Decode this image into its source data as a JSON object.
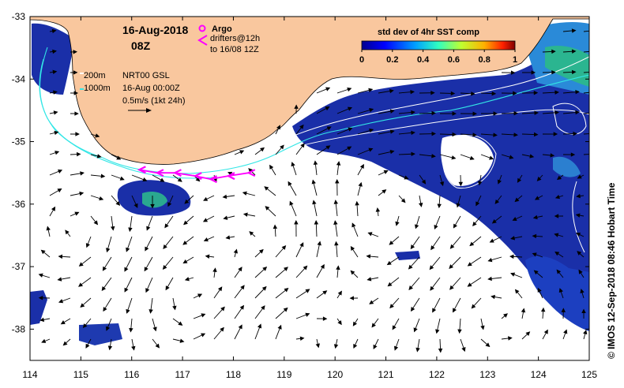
{
  "header": {
    "date": "16-Aug-2018",
    "time": "08Z"
  },
  "legend": {
    "argo_label": "Argo",
    "drifters_line1": "drifters@12h",
    "drifters_line2": "to 16/08 12Z",
    "depth_200": "200m",
    "depth_1000": "1000m",
    "product": "NRT00 GSL",
    "product_time": "16-Aug 00:00Z",
    "vector_scale": "0.5m/s (1kt 24h)"
  },
  "colorbar": {
    "title": "std dev of 4hr SST comp",
    "ticks": [
      "0",
      "0.2",
      "0.4",
      "0.6",
      "0.8",
      "1"
    ],
    "range": [
      0,
      1
    ]
  },
  "axes": {
    "x_ticks": [
      "114",
      "115",
      "116",
      "117",
      "118",
      "119",
      "120",
      "121",
      "122",
      "123",
      "124",
      "125"
    ],
    "y_ticks": [
      "-33",
      "-34",
      "-35",
      "-36",
      "-37",
      "-38"
    ],
    "lon_range": [
      114,
      125
    ],
    "lat_range": [
      -38.5,
      -33
    ]
  },
  "credit": "© IMOS 12-Sep-2018 08:46 Hobart Time",
  "colors": {
    "land": "#f9c79e",
    "depth_200": "#ffffff",
    "depth_1000": "#33e6e6",
    "drifter": "#ff00ff",
    "ocean_blue": "#1a2fa8"
  },
  "drifters": [
    {
      "lon": 116.15,
      "lat": -35.45
    },
    {
      "lon": 116.5,
      "lat": -35.5
    },
    {
      "lon": 116.85,
      "lat": -35.5
    },
    {
      "lon": 117.25,
      "lat": -35.55
    },
    {
      "lon": 117.55,
      "lat": -35.6
    },
    {
      "lon": 117.9,
      "lat": -35.55
    },
    {
      "lon": 118.3,
      "lat": -35.5
    }
  ]
}
